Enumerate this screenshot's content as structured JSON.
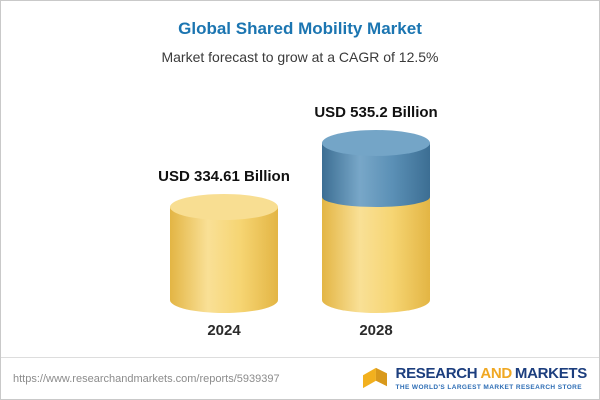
{
  "header": {
    "title": "Global Shared Mobility Market",
    "subtitle": "Market forecast to grow at a CAGR of 12.5%"
  },
  "chart_data": {
    "type": "bar",
    "bar_style": "3d-cylinder",
    "title": "Global Shared Mobility Market",
    "subtitle": "Market forecast to grow at a CAGR of 12.5%",
    "categories": [
      "2024",
      "2028"
    ],
    "values": [
      334.61,
      535.2
    ],
    "value_labels": [
      "USD 334.61 Billion",
      "USD 535.2 Billion"
    ],
    "unit": "USD Billion",
    "cagr_percent": 12.5,
    "ylim": [
      0,
      560
    ],
    "grid": false,
    "legend": "none",
    "colors": {
      "base_segment": "#F5CF63",
      "growth_segment": "#4E86B2",
      "title_text": "#1B75B1"
    },
    "notes": "2028 bar is stacked: yellow portion equals 2024 value (334.61), blue top portion is incremental growth to 535.2"
  },
  "footer": {
    "url": "https://www.researchandmarkets.com/reports/5939397",
    "logo": {
      "research": "RESEARCH",
      "and": "AND",
      "markets": "MARKETS",
      "tagline": "THE WORLD'S LARGEST MARKET RESEARCH STORE"
    }
  }
}
